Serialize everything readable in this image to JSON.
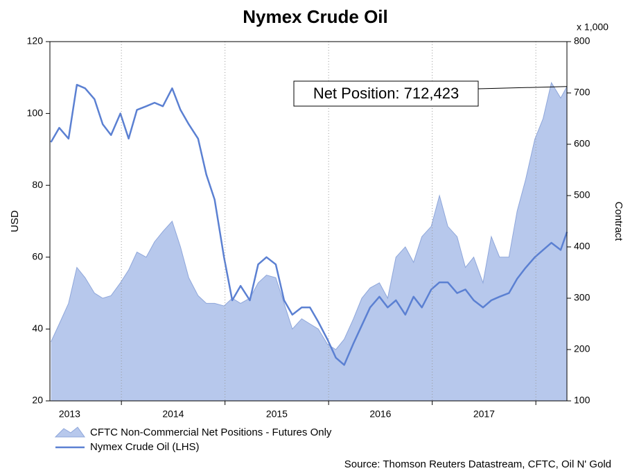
{
  "chart_data": {
    "type": "combo",
    "title": "Nymex Crude Oil",
    "ylabel": "USD",
    "y2label": "Contract",
    "y2unit": "x 1,000",
    "annotation": "Net Position: 712,423",
    "source": "Source: Thomson Reuters Datastream, CFTC, Oil N' Gold",
    "year_labels": [
      "2013",
      "2014",
      "2015",
      "2016",
      "2017"
    ],
    "x": [
      2013.32,
      2013.4,
      2013.49,
      2013.57,
      2013.65,
      2013.74,
      2013.82,
      2013.9,
      2013.99,
      2014.07,
      2014.15,
      2014.24,
      2014.32,
      2014.4,
      2014.49,
      2014.57,
      2014.65,
      2014.74,
      2014.82,
      2014.9,
      2014.99,
      2015.07,
      2015.15,
      2015.24,
      2015.32,
      2015.4,
      2015.49,
      2015.57,
      2015.65,
      2015.74,
      2015.82,
      2015.9,
      2015.99,
      2016.07,
      2016.15,
      2016.24,
      2016.32,
      2016.4,
      2016.49,
      2016.57,
      2016.65,
      2016.74,
      2016.82,
      2016.9,
      2016.99,
      2017.07,
      2017.15,
      2017.24,
      2017.32,
      2017.4,
      2017.49,
      2017.57,
      2017.65,
      2017.74,
      2017.82,
      2017.9,
      2017.99,
      2018.07,
      2018.15,
      2018.24,
      2018.3
    ],
    "series": [
      {
        "name": "CFTC Non-Commercial Net Positions - Futures Only",
        "type": "area",
        "axis": "y2",
        "color": "#b7c8ec",
        "edge": "#8ea6da",
        "values": [
          215,
          250,
          290,
          360,
          340,
          310,
          300,
          305,
          330,
          355,
          390,
          380,
          410,
          430,
          450,
          400,
          340,
          305,
          290,
          290,
          285,
          300,
          290,
          300,
          330,
          345,
          340,
          290,
          240,
          260,
          250,
          240,
          210,
          200,
          220,
          260,
          300,
          320,
          330,
          300,
          380,
          400,
          370,
          420,
          440,
          500,
          440,
          420,
          360,
          380,
          330,
          420,
          380,
          380,
          470,
          530,
          610,
          650,
          720,
          690,
          712.423
        ]
      },
      {
        "name": "Nymex Crude Oil (LHS)",
        "type": "line",
        "axis": "y",
        "color": "#5b80d2",
        "values": [
          92,
          96,
          93,
          108,
          107,
          104,
          97,
          94,
          100,
          93,
          101,
          102,
          103,
          102,
          107,
          101,
          97,
          93,
          83,
          76,
          60,
          48,
          52,
          48,
          58,
          60,
          58,
          48,
          44,
          46,
          46,
          42,
          37,
          32,
          30,
          36,
          41,
          46,
          49,
          46,
          48,
          44,
          49,
          46,
          51,
          53,
          53,
          50,
          51,
          48,
          46,
          48,
          49,
          50,
          54,
          57,
          60,
          62,
          64,
          62,
          67
        ]
      }
    ],
    "xlim": [
      2013.31,
      2018.3
    ],
    "xticks": [
      2014,
      2015,
      2016,
      2017,
      2018
    ],
    "ylim": [
      20,
      120
    ],
    "yticks": [
      20,
      40,
      60,
      80,
      100,
      120
    ],
    "y2lim": [
      100,
      800
    ],
    "y2ticks": [
      100,
      200,
      300,
      400,
      500,
      600,
      700,
      800
    ],
    "grid": true
  }
}
